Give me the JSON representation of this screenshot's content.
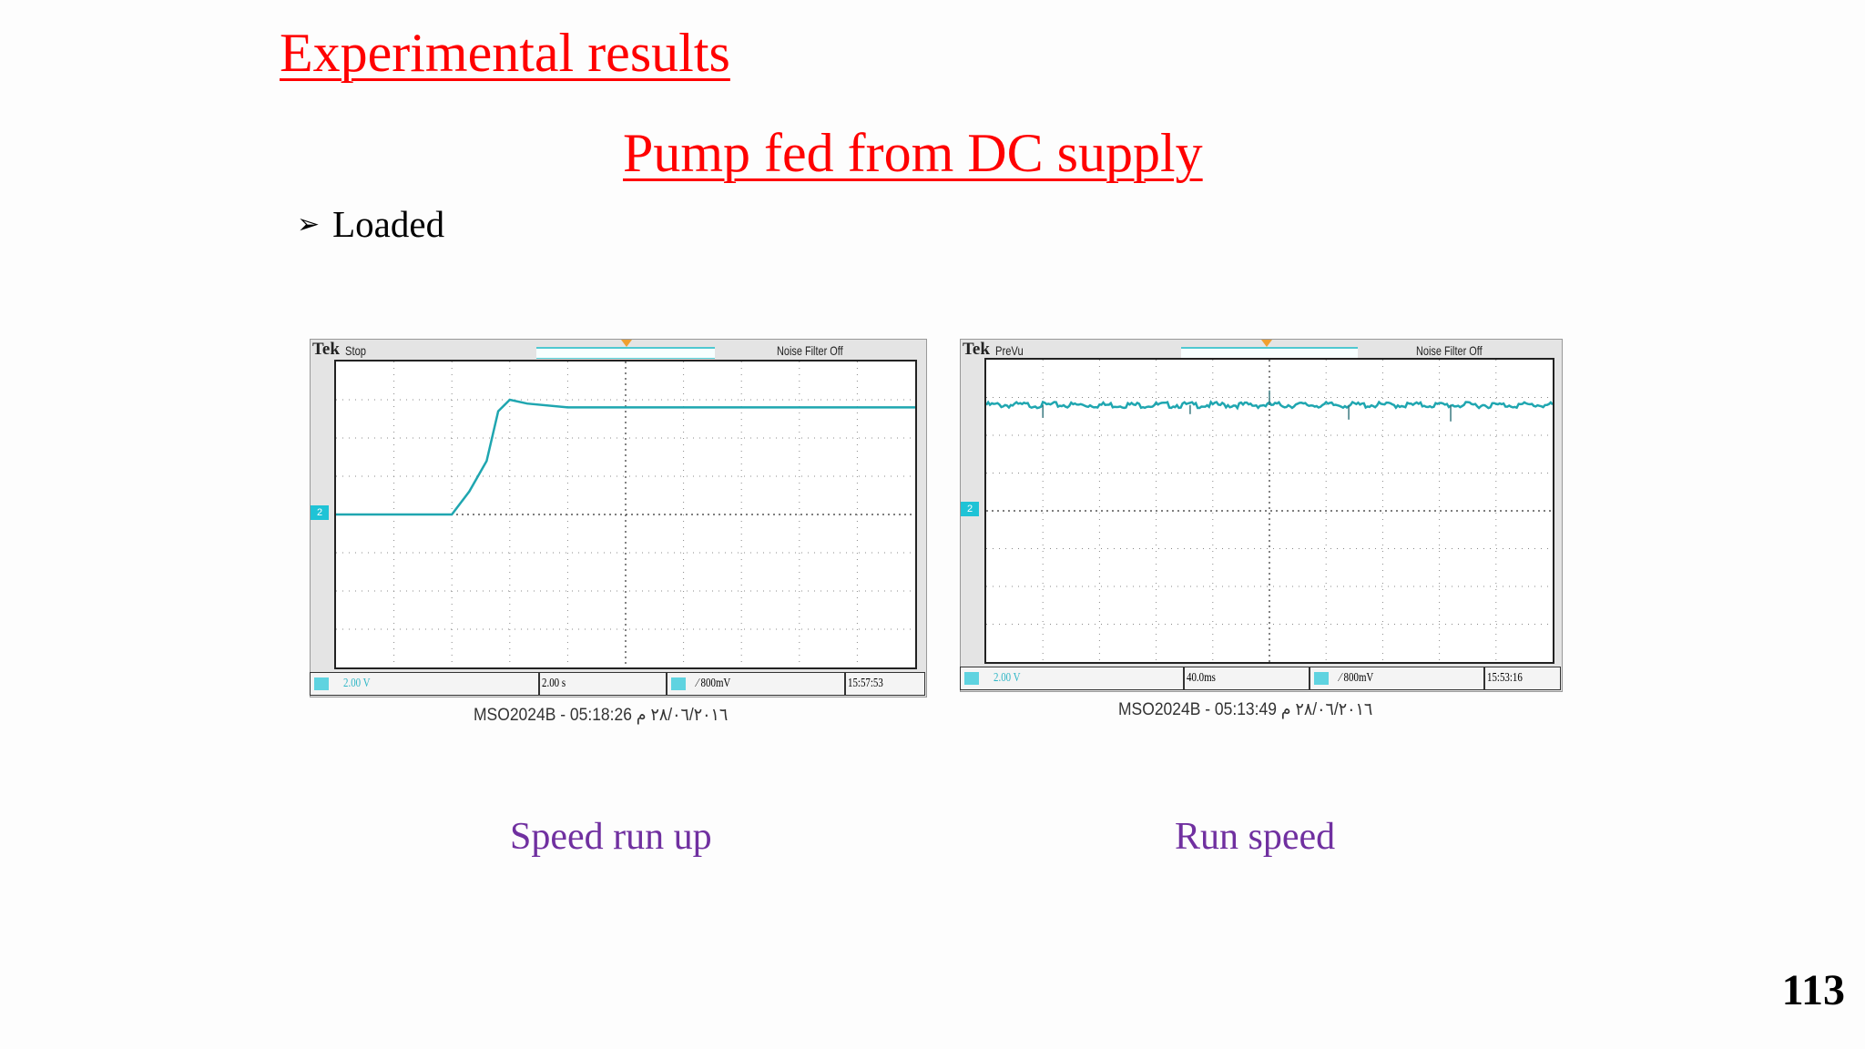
{
  "title": "Experimental results",
  "subtitle": "Pump fed from DC supply",
  "bullet": "Loaded",
  "scope_left": {
    "brand": "Tek",
    "state": "Stop",
    "noise_filter": "Noise Filter Off",
    "channel": "2",
    "status": {
      "ch_scale": "2.00 V",
      "time_scale": "2.00 s",
      "trigger": "800mV",
      "clock": "15:57:53"
    },
    "caption": "MSO2024B - 05:18:26 ٢٨/٠٦/٢٠١٦ م"
  },
  "scope_right": {
    "brand": "Tek",
    "state": "PreVu",
    "noise_filter": "Noise Filter Off",
    "channel": "2",
    "status": {
      "ch_scale": "2.00 V",
      "time_scale": "40.0ms",
      "trigger": "800mV",
      "clock": "15:53:16"
    },
    "caption": "MSO2024B - 05:13:49 ٢٨/٠٦/٢٠١٦ م"
  },
  "label_left": "Speed run up",
  "label_right": "Run speed",
  "page_number": "113",
  "colors": {
    "title": "#ff0000",
    "label": "#7030a0",
    "trace": "#1fa6b0"
  },
  "chart_data": [
    {
      "type": "line",
      "series": [
        {
          "x": [
            0,
            2.0,
            2.3,
            2.6,
            2.8,
            3.0,
            3.3,
            4,
            6,
            8,
            10
          ],
          "values": [
            0,
            0,
            0.6,
            1.4,
            2.7,
            3.0,
            2.9,
            2.8,
            2.8,
            2.8,
            2.8
          ]
        }
      ],
      "xlim": [
        0,
        10
      ],
      "ylim": [
        -4,
        4
      ]
    },
    {
      "type": "line",
      "series": [
        {
          "x": [
            0,
            10
          ],
          "values": [
            2.8,
            2.8
          ]
        }
      ],
      "xlim": [
        0,
        10
      ],
      "ylim": [
        -4,
        4
      ]
    }
  ]
}
